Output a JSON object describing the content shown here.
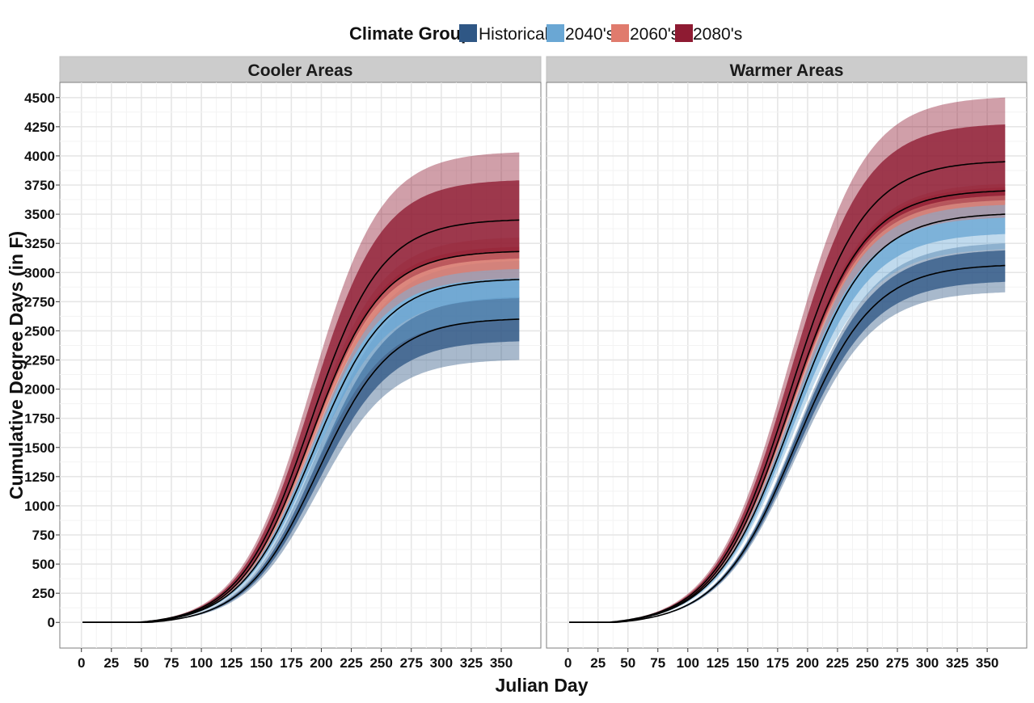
{
  "chart_data": {
    "type": "area",
    "legend": {
      "title": "Climate Group",
      "position": "top",
      "entries": [
        {
          "label": "Historical",
          "color": "#2F5785"
        },
        {
          "label": "2040's",
          "color": "#6AA7D4"
        },
        {
          "label": "2060's",
          "color": "#E07B6D"
        },
        {
          "label": "2080's",
          "color": "#8E1B32"
        }
      ]
    },
    "xlabel": "Julian Day",
    "ylabel": "Cumulative Degree Days (in F)",
    "xlim": [
      -18,
      383
    ],
    "ylim": [
      -220,
      4630
    ],
    "x_ticks": [
      0,
      25,
      50,
      75,
      100,
      125,
      150,
      175,
      200,
      225,
      250,
      275,
      300,
      325,
      350
    ],
    "y_ticks": [
      0,
      250,
      500,
      750,
      1000,
      1250,
      1500,
      1750,
      2000,
      2250,
      2500,
      2750,
      3000,
      3250,
      3500,
      3750,
      4000,
      4250,
      4500
    ],
    "grid": true,
    "panels": [
      {
        "title": "Cooler Areas",
        "series": [
          {
            "name": "Historical",
            "x0": 56,
            "x50": 197,
            "k": 0.033,
            "median": 2600,
            "inner": [
              2410,
              2790
            ],
            "outer": [
              2250,
              2950
            ]
          },
          {
            "name": "2040's",
            "x0": 52,
            "x50": 193,
            "k": 0.033,
            "median": 2940,
            "inner": [
              2780,
              3100
            ],
            "outer": [
              2600,
              3170
            ]
          },
          {
            "name": "2060's",
            "x0": 49,
            "x50": 191,
            "k": 0.034,
            "median": 3180,
            "inner": [
              3030,
              3220
            ],
            "outer": [
              2950,
              3300
            ]
          },
          {
            "name": "2080's",
            "x0": 46,
            "x50": 191,
            "k": 0.034,
            "median": 3450,
            "inner": [
              3180,
              3790
            ],
            "outer": [
              3120,
              4030
            ]
          }
        ]
      },
      {
        "title": "Warmer Areas",
        "series": [
          {
            "name": "Historical",
            "x0": 40,
            "x50": 190,
            "k": 0.031,
            "median": 3060,
            "inner": [
              2920,
              3190
            ],
            "outer": [
              2830,
              3250
            ]
          },
          {
            "name": "2040's",
            "x0": 37,
            "x50": 187,
            "k": 0.031,
            "median": 3500,
            "inner": [
              3330,
              3660
            ],
            "outer": [
              3200,
              3690
            ]
          },
          {
            "name": "2060's",
            "x0": 35,
            "x50": 185,
            "k": 0.032,
            "median": 3700,
            "inner": [
              3580,
              3730
            ],
            "outer": [
              3470,
              3760
            ]
          },
          {
            "name": "2080's",
            "x0": 33,
            "x50": 185,
            "k": 0.032,
            "median": 3950,
            "inner": [
              3660,
              4270
            ],
            "outer": [
              3620,
              4500
            ]
          }
        ]
      }
    ]
  }
}
